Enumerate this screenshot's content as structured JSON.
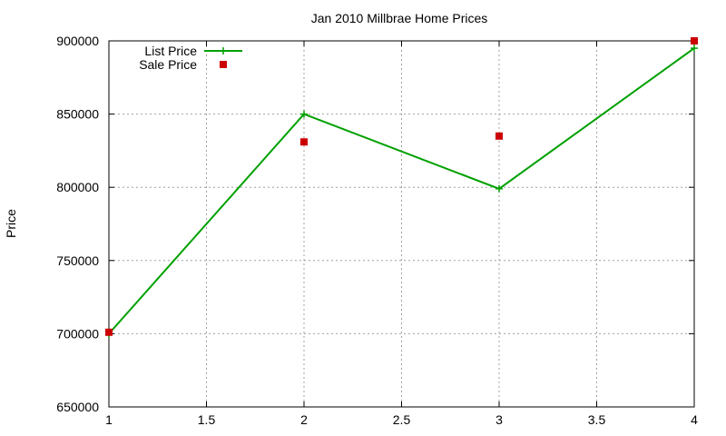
{
  "chart_data": {
    "type": "line",
    "title": "Jan 2010 Millbrae Home Prices",
    "xlabel": "",
    "ylabel": "Price",
    "xlim": [
      1,
      4
    ],
    "ylim": [
      650000,
      900000
    ],
    "x_ticks": [
      "1",
      "1.5",
      "2",
      "2.5",
      "3",
      "3.5",
      "4"
    ],
    "y_ticks": [
      "650000",
      "700000",
      "750000",
      "800000",
      "850000",
      "900000"
    ],
    "grid": true,
    "legend_position": "top-left",
    "series": [
      {
        "name": "List Price",
        "style": "line-points",
        "marker": "plus",
        "color": "#00a000",
        "x": [
          1,
          2,
          3,
          4
        ],
        "y": [
          700000,
          850000,
          799000,
          895000
        ]
      },
      {
        "name": "Sale Price",
        "style": "points",
        "marker": "square",
        "color": "#cc0000",
        "x": [
          1,
          2,
          3,
          4
        ],
        "y": [
          701000,
          831000,
          835000,
          900000
        ]
      }
    ]
  }
}
